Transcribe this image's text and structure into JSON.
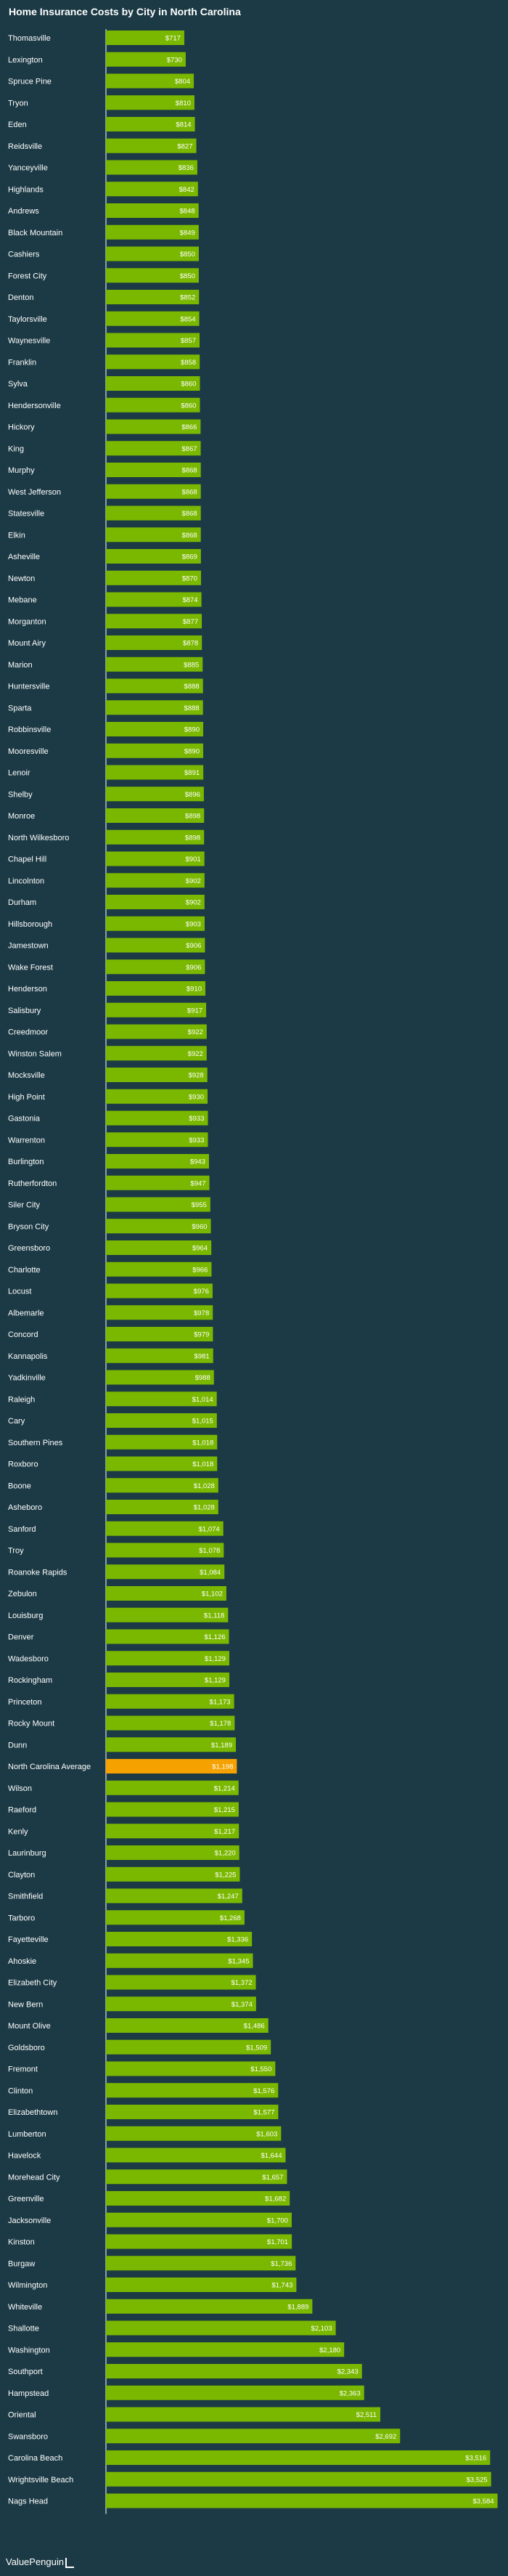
{
  "chart_data": {
    "type": "bar",
    "orientation": "horizontal",
    "title": "Home Insurance Costs by City in North Carolina",
    "bar_color": "#7ab800",
    "highlight_color": "#f5a100",
    "background_color": "#1c3a45",
    "highlight_category": "North Carolina Average",
    "xlim": [
      0,
      3600
    ],
    "categories": [
      "Thomasville",
      "Lexington",
      "Spruce Pine",
      "Tryon",
      "Eden",
      "Reidsville",
      "Yanceyville",
      "Highlands",
      "Andrews",
      "Black Mountain",
      "Cashiers",
      "Forest City",
      "Denton",
      "Taylorsville",
      "Waynesville",
      "Franklin",
      "Sylva",
      "Hendersonville",
      "Hickory",
      "King",
      "Murphy",
      "West Jefferson",
      "Statesville",
      "Elkin",
      "Asheville",
      "Newton",
      "Mebane",
      "Morganton",
      "Mount Airy",
      "Marion",
      "Huntersville",
      "Sparta",
      "Robbinsville",
      "Mooresville",
      "Lenoir",
      "Shelby",
      "Monroe",
      "North Wilkesboro",
      "Chapel Hill",
      "Lincolnton",
      "Durham",
      "Hillsborough",
      "Jamestown",
      "Wake Forest",
      "Henderson",
      "Salisbury",
      "Creedmoor",
      "Winston Salem",
      "Mocksville",
      "High Point",
      "Gastonia",
      "Warrenton",
      "Burlington",
      "Rutherfordton",
      "Siler City",
      "Bryson City",
      "Greensboro",
      "Charlotte",
      "Locust",
      "Albemarle",
      "Concord",
      "Kannapolis",
      "Yadkinville",
      "Raleigh",
      "Cary",
      "Southern Pines",
      "Roxboro",
      "Boone",
      "Asheboro",
      "Sanford",
      "Troy",
      "Roanoke Rapids",
      "Zebulon",
      "Louisburg",
      "Denver",
      "Wadesboro",
      "Rockingham",
      "Princeton",
      "Rocky Mount",
      "Dunn",
      "North Carolina Average",
      "Wilson",
      "Raeford",
      "Kenly",
      "Laurinburg",
      "Clayton",
      "Smithfield",
      "Tarboro",
      "Fayetteville",
      "Ahoskie",
      "Elizabeth City",
      "New Bern",
      "Mount Olive",
      "Goldsboro",
      "Fremont",
      "Clinton",
      "Elizabethtown",
      "Lumberton",
      "Havelock",
      "Morehead City",
      "Greenville",
      "Jacksonville",
      "Kinston",
      "Burgaw",
      "Wilmington",
      "Whiteville",
      "Shallotte",
      "Washington",
      "Southport",
      "Hampstead",
      "Oriental",
      "Swansboro",
      "Carolina Beach",
      "Wrightsville Beach",
      "Nags Head"
    ],
    "values": [
      717,
      730,
      804,
      810,
      814,
      827,
      836,
      842,
      848,
      849,
      850,
      850,
      852,
      854,
      857,
      858,
      860,
      860,
      866,
      867,
      868,
      868,
      868,
      868,
      869,
      870,
      874,
      877,
      878,
      885,
      888,
      888,
      890,
      890,
      891,
      896,
      898,
      898,
      901,
      902,
      902,
      903,
      906,
      906,
      910,
      917,
      922,
      922,
      928,
      930,
      933,
      933,
      943,
      947,
      955,
      960,
      964,
      966,
      976,
      978,
      979,
      981,
      988,
      1014,
      1015,
      1018,
      1018,
      1028,
      1028,
      1074,
      1078,
      1084,
      1102,
      1118,
      1126,
      1129,
      1129,
      1173,
      1178,
      1189,
      1198,
      1214,
      1215,
      1217,
      1220,
      1225,
      1247,
      1268,
      1336,
      1345,
      1372,
      1374,
      1486,
      1509,
      1550,
      1576,
      1577,
      1603,
      1644,
      1657,
      1682,
      1700,
      1701,
      1736,
      1743,
      1889,
      2103,
      2180,
      2343,
      2363,
      2511,
      2692,
      3516,
      3525,
      3584
    ],
    "labels": [
      "$717",
      "$730",
      "$804",
      "$810",
      "$814",
      "$827",
      "$836",
      "$842",
      "$848",
      "$849",
      "$850",
      "$850",
      "$852",
      "$854",
      "$857",
      "$858",
      "$860",
      "$860",
      "$866",
      "$867",
      "$868",
      "$868",
      "$868",
      "$868",
      "$869",
      "$870",
      "$874",
      "$877",
      "$878",
      "$885",
      "$888",
      "$888",
      "$890",
      "$890",
      "$891",
      "$896",
      "$898",
      "$898",
      "$901",
      "$902",
      "$902",
      "$903",
      "$906",
      "$906",
      "$910",
      "$917",
      "$922",
      "$922",
      "$928",
      "$930",
      "$933",
      "$933",
      "$943",
      "$947",
      "$955",
      "$960",
      "$964",
      "$966",
      "$976",
      "$978",
      "$979",
      "$981",
      "$988",
      "$1,014",
      "$1,015",
      "$1,018",
      "$1,018",
      "$1,028",
      "$1,028",
      "$1,074",
      "$1,078",
      "$1,084",
      "$1,102",
      "$1,118",
      "$1,126",
      "$1,129",
      "$1,129",
      "$1,173",
      "$1,178",
      "$1,189",
      "$1,198",
      "$1,214",
      "$1,215",
      "$1,217",
      "$1,220",
      "$1,225",
      "$1,247",
      "$1,268",
      "$1,336",
      "$1,345",
      "$1,372",
      "$1,374",
      "$1,486",
      "$1,509",
      "$1,550",
      "$1,576",
      "$1,577",
      "$1,603",
      "$1,644",
      "$1,657",
      "$1,682",
      "$1,700",
      "$1,701",
      "$1,736",
      "$1,743",
      "$1,889",
      "$2,103",
      "$2,180",
      "$2,343",
      "$2,363",
      "$2,511",
      "$2,692",
      "$3,516",
      "$3,525",
      "$3,584"
    ]
  },
  "footer": {
    "brand": "ValuePenguin"
  }
}
